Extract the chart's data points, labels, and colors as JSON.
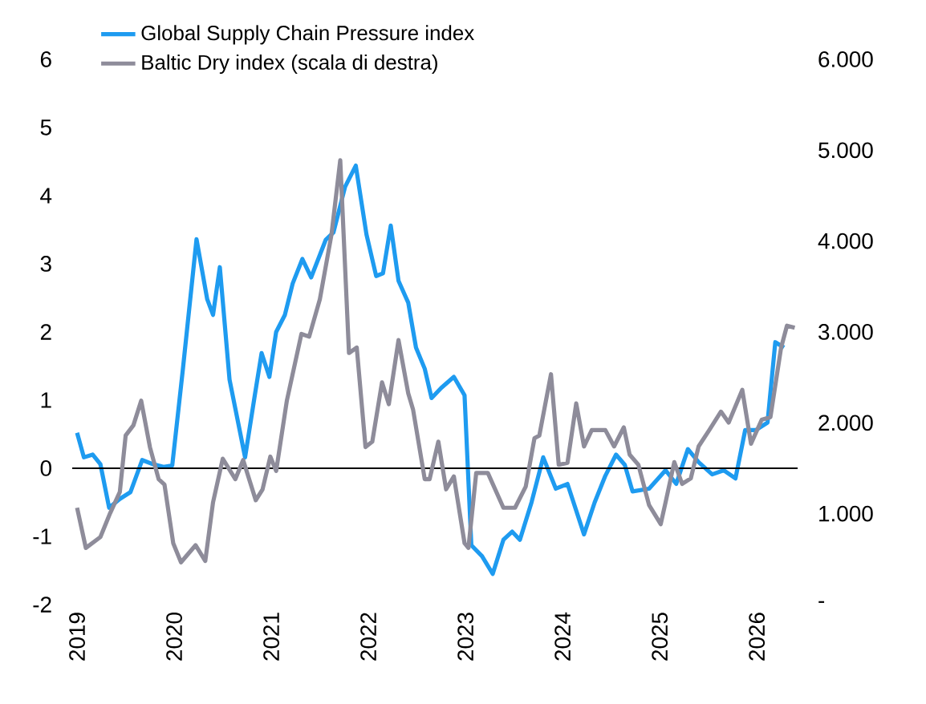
{
  "chart_data": {
    "type": "line",
    "xlim": [
      2018.95,
      2026.42
    ],
    "xticks": [
      2019,
      2020,
      2021,
      2022,
      2023,
      2024,
      2025,
      2026
    ],
    "ylim": [
      -2,
      6
    ],
    "yticks": [
      -2,
      -1,
      0,
      1,
      2,
      3,
      4,
      5,
      6
    ],
    "y2lim": [
      0,
      6000
    ],
    "y2ticks": [
      {
        "value": 0,
        "label": "-"
      },
      {
        "value": 1000,
        "label": "1.000"
      },
      {
        "value": 2000,
        "label": "2.000"
      },
      {
        "value": 3000,
        "label": "3.000"
      },
      {
        "value": 4000,
        "label": "4.000"
      },
      {
        "value": 5000,
        "label": "5.000"
      },
      {
        "value": 6000,
        "label": "6.000"
      }
    ],
    "legend": "top left",
    "marker": "none",
    "line_style": "solid",
    "ref_lines": [
      {
        "axis": "y",
        "value": 0,
        "color": "#000000"
      }
    ],
    "series": [
      {
        "name": "Global Supply Chain Pressure index",
        "color": "#1e9bf0",
        "x": [
          2019.0,
          2019.07,
          2019.16,
          2019.24,
          2019.33,
          2019.44,
          2019.55,
          2019.67,
          2019.78,
          2019.89,
          2019.98,
          2020.09,
          2020.23,
          2020.34,
          2020.4,
          2020.47,
          2020.57,
          2020.73,
          2020.83,
          2020.9,
          2020.98,
          2021.05,
          2021.14,
          2021.22,
          2021.32,
          2021.41,
          2021.56,
          2021.64,
          2021.76,
          2021.87,
          2021.98,
          2022.08,
          2022.15,
          2022.23,
          2022.31,
          2022.41,
          2022.49,
          2022.58,
          2022.65,
          2022.75,
          2022.88,
          2022.99,
          2023.06,
          2023.17,
          2023.28,
          2023.39,
          2023.48,
          2023.56,
          2023.68,
          2023.8,
          2023.93,
          2024.05,
          2024.22,
          2024.33,
          2024.44,
          2024.55,
          2024.64,
          2024.72,
          2024.89,
          2025.06,
          2025.17,
          2025.29,
          2025.4,
          2025.54,
          2025.66,
          2025.78,
          2025.88,
          2025.99,
          2026.11,
          2026.19,
          2026.28
        ],
        "values": [
          0.52,
          0.16,
          0.2,
          0.06,
          -0.58,
          -0.45,
          -0.35,
          0.12,
          0.06,
          0.02,
          0.04,
          1.46,
          3.36,
          2.48,
          2.25,
          2.95,
          1.3,
          0.16,
          1.07,
          1.69,
          1.34,
          2.0,
          2.25,
          2.71,
          3.07,
          2.8,
          3.35,
          3.46,
          4.13,
          4.44,
          3.43,
          2.82,
          2.86,
          3.56,
          2.75,
          2.43,
          1.77,
          1.46,
          1.03,
          1.18,
          1.34,
          1.07,
          -1.13,
          -1.29,
          -1.55,
          -1.05,
          -0.93,
          -1.05,
          -0.5,
          0.16,
          -0.3,
          -0.23,
          -0.97,
          -0.5,
          -0.11,
          0.2,
          0.05,
          -0.34,
          -0.3,
          -0.03,
          -0.23,
          0.28,
          0.09,
          -0.09,
          -0.03,
          -0.15,
          0.56,
          0.56,
          0.67,
          1.85,
          1.77
        ]
      },
      {
        "name": "Baltic Dry index (scala di destra)",
        "color": "#8e8c9a",
        "axis": "y2",
        "x": [
          2019.0,
          2019.09,
          2019.24,
          2019.34,
          2019.44,
          2019.5,
          2019.58,
          2019.66,
          2019.75,
          2019.84,
          2019.9,
          2019.99,
          2020.07,
          2020.22,
          2020.32,
          2020.4,
          2020.5,
          2020.63,
          2020.71,
          2020.84,
          2020.91,
          2020.99,
          2021.05,
          2021.16,
          2021.31,
          2021.39,
          2021.5,
          2021.62,
          2021.71,
          2021.8,
          2021.88,
          2021.97,
          2022.04,
          2022.14,
          2022.21,
          2022.31,
          2022.41,
          2022.46,
          2022.58,
          2022.63,
          2022.72,
          2022.8,
          2022.88,
          2022.99,
          2023.03,
          2023.11,
          2023.23,
          2023.39,
          2023.51,
          2023.62,
          2023.71,
          2023.76,
          2023.88,
          2023.96,
          2024.05,
          2024.14,
          2024.22,
          2024.3,
          2024.44,
          2024.53,
          2024.63,
          2024.69,
          2024.78,
          2024.89,
          2025.01,
          2025.06,
          2025.15,
          2025.23,
          2025.32,
          2025.4,
          2025.51,
          2025.63,
          2025.71,
          2025.85,
          2025.94,
          2026.05,
          2026.14,
          2026.25,
          2026.31,
          2026.39
        ],
        "values": [
          1065,
          623,
          743,
          1005,
          1238,
          1860,
          1973,
          2243,
          1733,
          1380,
          1320,
          675,
          465,
          653,
          480,
          1125,
          1605,
          1380,
          1590,
          1148,
          1268,
          1628,
          1470,
          2243,
          2978,
          2948,
          3360,
          4073,
          4890,
          2768,
          2828,
          1733,
          1793,
          2445,
          2205,
          2910,
          2325,
          2145,
          1380,
          1380,
          1793,
          1268,
          1410,
          675,
          623,
          1448,
          1448,
          1065,
          1065,
          1298,
          1830,
          1860,
          2535,
          1538,
          1560,
          2213,
          1740,
          1920,
          1920,
          1740,
          1950,
          1650,
          1538,
          1095,
          885,
          1125,
          1568,
          1328,
          1388,
          1740,
          1920,
          2123,
          2003,
          2363,
          1770,
          2033,
          2063,
          2828,
          3068,
          3045
        ]
      }
    ]
  }
}
